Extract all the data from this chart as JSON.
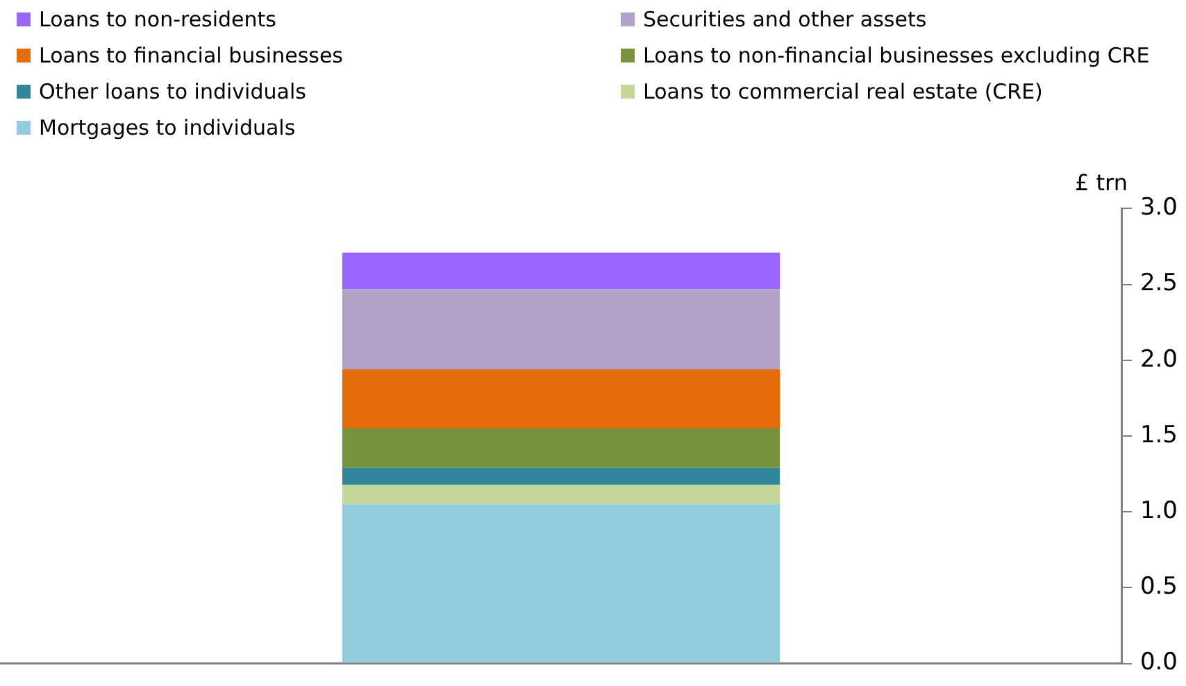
{
  "chart_data": {
    "type": "bar",
    "stacked": true,
    "ylabel": "£ trn",
    "categories": [
      null
    ],
    "series": [
      {
        "name": "Mortgages to individuals",
        "color": "#93cddd",
        "values": [
          1.05
        ]
      },
      {
        "name": "Loans to commercial real estate (CRE)",
        "color": "#c4d79b",
        "values": [
          0.13
        ]
      },
      {
        "name": "Other loans to individuals",
        "color": "#31859c",
        "values": [
          0.11
        ]
      },
      {
        "name": "Loans to non-financial businesses excluding CRE",
        "color": "#77933c",
        "values": [
          0.26
        ]
      },
      {
        "name": "Loans to financial businesses",
        "color": "#e46c0a",
        "values": [
          0.39
        ]
      },
      {
        "name": "Securities and other assets",
        "color": "#b3a2c7",
        "values": [
          0.53
        ]
      },
      {
        "name": "Loans to non-residents",
        "color": "#9966ff",
        "values": [
          0.24
        ]
      }
    ],
    "ylim": [
      0,
      3
    ],
    "yticks": [
      {
        "value": 0,
        "label": "0.0"
      },
      {
        "value": 0.5,
        "label": "0.5"
      },
      {
        "value": 1,
        "label": "1.0"
      },
      {
        "value": 1.5,
        "label": "1.5"
      },
      {
        "value": 2,
        "label": "2.0"
      },
      {
        "value": 2.5,
        "label": "2.5"
      },
      {
        "value": 3,
        "label": "3.0"
      }
    ],
    "grid": false,
    "legend": "top"
  }
}
